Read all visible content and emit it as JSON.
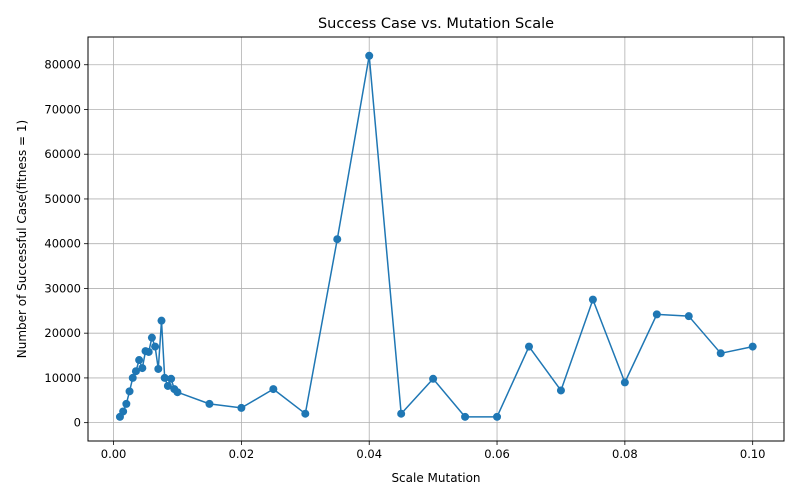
{
  "chart_data": {
    "type": "line",
    "title": "Success Case vs. Mutation Scale",
    "xlabel": "Scale Mutation",
    "ylabel": "Number of Successful Case(fitness = 1)",
    "xlim": [
      -0.004,
      0.1049
    ],
    "ylim": [
      -4100,
      86200
    ],
    "grid": true,
    "line_color": "#1f77b4",
    "x_ticks": [
      0.0,
      0.02,
      0.04,
      0.06,
      0.08,
      0.1
    ],
    "x_tick_labels": [
      "0.00",
      "0.02",
      "0.04",
      "0.06",
      "0.08",
      "0.10"
    ],
    "y_ticks": [
      0,
      10000,
      20000,
      30000,
      40000,
      50000,
      60000,
      70000,
      80000
    ],
    "y_tick_labels": [
      "0",
      "10000",
      "20000",
      "30000",
      "40000",
      "50000",
      "60000",
      "70000",
      "80000"
    ],
    "series": [
      {
        "x": [
          0.001,
          0.0015,
          0.002,
          0.0025,
          0.003,
          0.0035,
          0.004,
          0.0045,
          0.005,
          0.0055,
          0.006,
          0.0065,
          0.007,
          0.0075,
          0.008,
          0.0085,
          0.009,
          0.0095,
          0.01,
          0.015,
          0.02,
          0.025,
          0.03,
          0.035,
          0.04,
          0.045,
          0.05,
          0.055,
          0.06,
          0.065,
          0.07,
          0.075,
          0.08,
          0.085,
          0.09,
          0.095,
          0.1
        ],
        "y": [
          1300,
          2500,
          4200,
          7000,
          10000,
          11500,
          14000,
          12200,
          16000,
          15800,
          19000,
          17000,
          12000,
          22800,
          10000,
          8200,
          9800,
          7500,
          6800,
          4200,
          3300,
          7500,
          2000,
          41000,
          82000,
          2000,
          9800,
          1300,
          1300,
          17000,
          7200,
          27500,
          9000,
          24200,
          23800,
          15500,
          17000
        ]
      }
    ]
  }
}
